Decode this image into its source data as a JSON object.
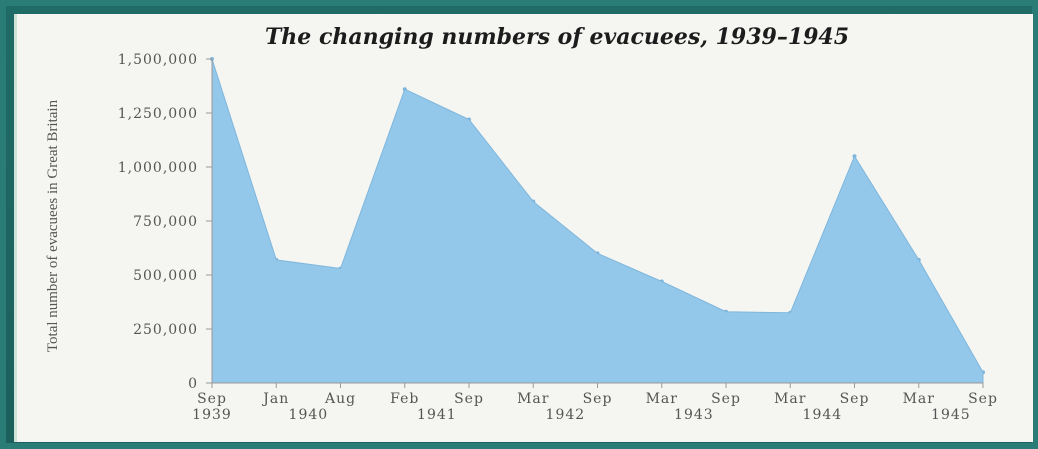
{
  "chart_data": {
    "type": "area",
    "title": "The changing numbers of evacuees, 1939–1945",
    "ylabel": "Total number of evacuees in Great Britain",
    "xlabel": "",
    "ylim": [
      0,
      1500000
    ],
    "yticks": [
      "0",
      "250,000",
      "500,000",
      "750,000",
      "1,000,000",
      "1,250,000",
      "1,500,000"
    ],
    "ytick_values": [
      0,
      250000,
      500000,
      750000,
      1000000,
      1250000,
      1500000
    ],
    "xticks": [
      {
        "month": "Sep",
        "year": "1939"
      },
      {
        "month": "Jan",
        "year": "1940"
      },
      {
        "month": "Aug",
        "year": ""
      },
      {
        "month": "Feb",
        "year": "1941"
      },
      {
        "month": "Sep",
        "year": ""
      },
      {
        "month": "Mar",
        "year": "1942"
      },
      {
        "month": "Sep",
        "year": ""
      },
      {
        "month": "Mar",
        "year": "1943"
      },
      {
        "month": "Sep",
        "year": ""
      },
      {
        "month": "Mar",
        "year": "1944"
      },
      {
        "month": "Sep",
        "year": ""
      },
      {
        "month": "Mar",
        "year": "1945"
      },
      {
        "month": "Sep",
        "year": ""
      }
    ],
    "year_label_between": [
      false,
      true,
      false,
      true,
      false,
      true,
      false,
      true,
      false,
      true,
      false,
      true,
      false
    ],
    "values": [
      1500000,
      570000,
      530000,
      1360000,
      1220000,
      840000,
      600000,
      470000,
      330000,
      325000,
      1050000,
      570000,
      50000
    ],
    "fill_color": "#94c8ea"
  }
}
